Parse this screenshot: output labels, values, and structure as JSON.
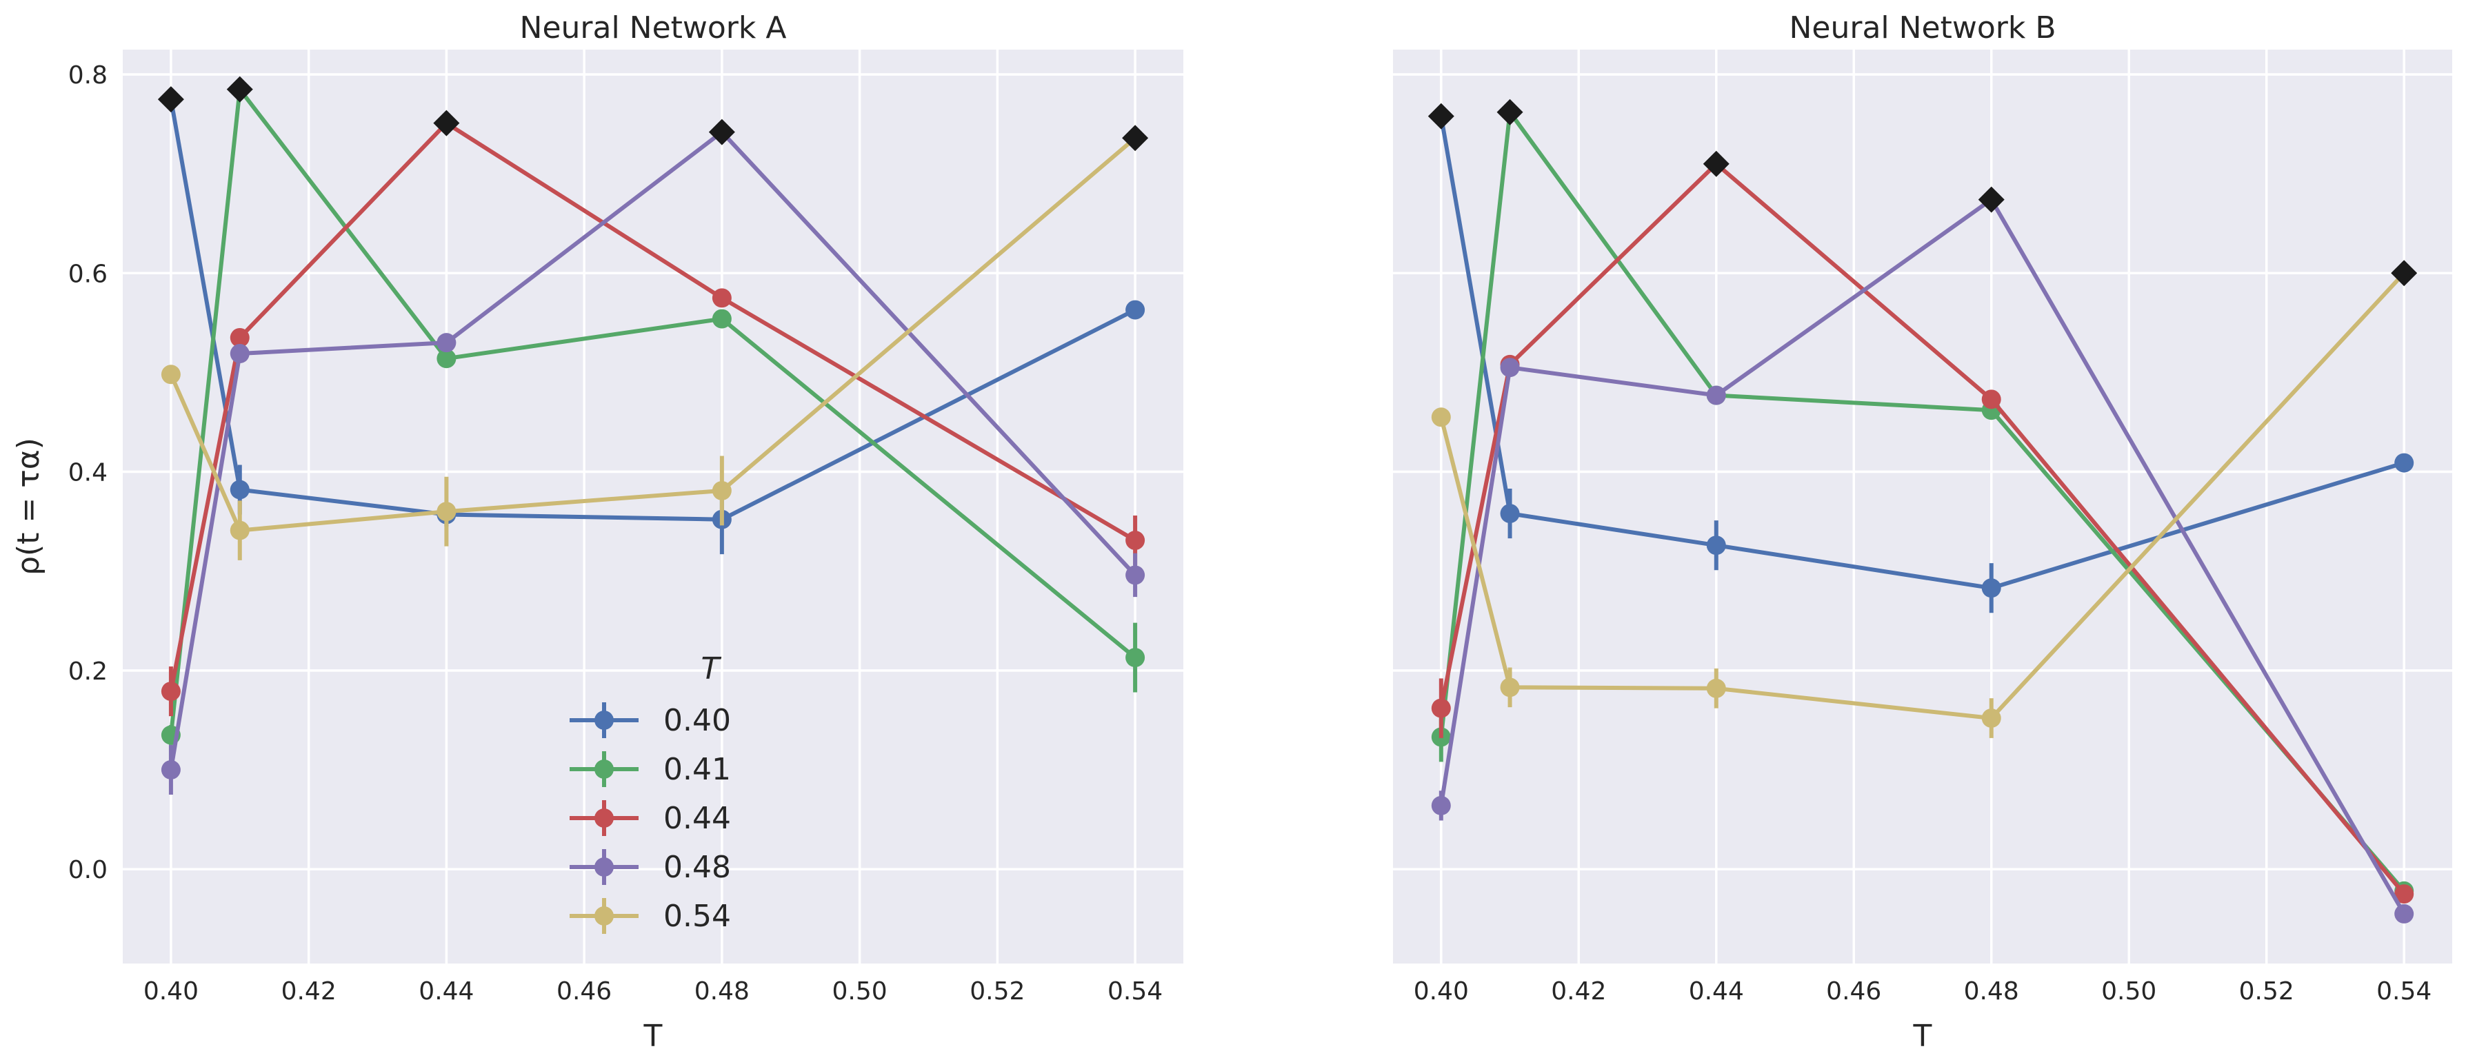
{
  "colors": {
    "background": "#eaeaf2",
    "grid": "#ffffff",
    "series": [
      "#4c72b0",
      "#55a868",
      "#c44e52",
      "#8172b2",
      "#ccb974"
    ],
    "peak_marker": "#1a1a1a"
  },
  "legend": {
    "title": "T",
    "entries": [
      "0.40",
      "0.41",
      "0.44",
      "0.48",
      "0.54"
    ]
  },
  "chart_data": [
    {
      "type": "line",
      "title": "Neural Network A",
      "xlabel": "T",
      "ylabel": "ρ(t = τα)",
      "xlim": [
        0.393,
        0.547
      ],
      "ylim": [
        -0.095,
        0.825
      ],
      "xticks": [
        "0.40",
        "0.42",
        "0.44",
        "0.46",
        "0.48",
        "0.50",
        "0.52",
        "0.54"
      ],
      "yticks": [
        "0.0",
        "0.2",
        "0.4",
        "0.6",
        "0.8"
      ],
      "x": [
        0.4,
        0.41,
        0.44,
        0.48,
        0.54
      ],
      "series": [
        {
          "name": "0.40",
          "values": [
            0.775,
            0.382,
            0.357,
            0.352,
            0.563
          ],
          "errors": [
            0.0,
            0.025,
            0.012,
            0.035,
            0.0
          ],
          "peak_index": 0
        },
        {
          "name": "0.41",
          "values": [
            0.135,
            0.785,
            0.514,
            0.554,
            0.213
          ],
          "errors": [
            0.01,
            0.0,
            0.0,
            0.0,
            0.035
          ],
          "peak_index": 1
        },
        {
          "name": "0.44",
          "values": [
            0.179,
            0.535,
            0.751,
            0.575,
            0.331
          ],
          "errors": [
            0.025,
            0.0,
            0.0,
            0.0,
            0.025
          ],
          "peak_index": 2
        },
        {
          "name": "0.48",
          "values": [
            0.1,
            0.519,
            0.53,
            0.742,
            0.296
          ],
          "errors": [
            0.025,
            0.0,
            0.0,
            0.0,
            0.022
          ],
          "peak_index": 3
        },
        {
          "name": "0.54",
          "values": [
            0.498,
            0.341,
            0.36,
            0.381,
            0.736
          ],
          "errors": [
            0.0,
            0.03,
            0.035,
            0.035,
            0.0
          ],
          "peak_index": 4
        }
      ]
    },
    {
      "type": "line",
      "title": "Neural Network B",
      "xlabel": "T",
      "ylabel": "",
      "xlim": [
        0.393,
        0.547
      ],
      "ylim": [
        -0.095,
        0.825
      ],
      "xticks": [
        "0.40",
        "0.42",
        "0.44",
        "0.46",
        "0.48",
        "0.50",
        "0.52",
        "0.54"
      ],
      "yticks": [],
      "x": [
        0.4,
        0.41,
        0.44,
        0.48,
        0.54
      ],
      "series": [
        {
          "name": "0.40",
          "values": [
            0.758,
            0.358,
            0.326,
            0.283,
            0.409
          ],
          "errors": [
            0.0,
            0.025,
            0.025,
            0.025,
            0.0
          ],
          "peak_index": 0
        },
        {
          "name": "0.41",
          "values": [
            0.133,
            0.762,
            0.477,
            0.462,
            -0.022
          ],
          "errors": [
            0.025,
            0.0,
            0.0,
            0.0,
            0.0
          ],
          "peak_index": 1
        },
        {
          "name": "0.44",
          "values": [
            0.162,
            0.508,
            0.71,
            0.473,
            -0.025
          ],
          "errors": [
            0.03,
            0.0,
            0.0,
            0.0,
            0.0
          ],
          "peak_index": 2
        },
        {
          "name": "0.48",
          "values": [
            0.064,
            0.505,
            0.477,
            0.674,
            -0.045
          ],
          "errors": [
            0.015,
            0.0,
            0.0,
            0.0,
            0.0
          ],
          "peak_index": 3
        },
        {
          "name": "0.54",
          "values": [
            0.455,
            0.183,
            0.182,
            0.152,
            0.6
          ],
          "errors": [
            0.0,
            0.02,
            0.02,
            0.02,
            0.0
          ],
          "peak_index": 4
        }
      ]
    }
  ]
}
